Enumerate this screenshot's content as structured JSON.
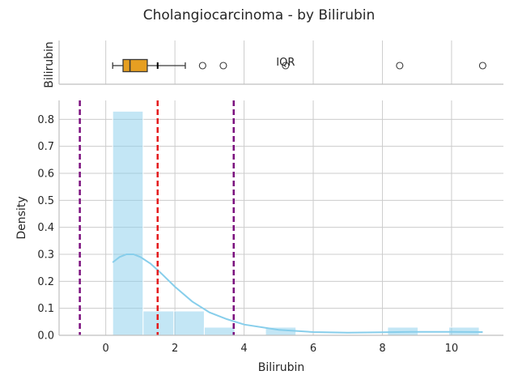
{
  "title": "Cholangiocarcinoma - by Bilirubin",
  "colors": {
    "hist": "#87CEEB",
    "kde": "#87CEEB",
    "box": "#E69F22",
    "mean_line": "#E41A1C",
    "bound_line": "#7B0F7E",
    "grid": "#CCCCCC",
    "axis": "#BFBFBF",
    "text": "#262626"
  },
  "chart_data": [
    {
      "type": "box",
      "ylabel": "Bilirubin",
      "annotation": "IQR",
      "whisker_low": 0.2,
      "q1": 0.5,
      "median": 0.7,
      "q3": 1.2,
      "whisker_high": 2.3,
      "mean": 1.5,
      "outliers": [
        2.8,
        3.4,
        5.2,
        8.5,
        10.9
      ],
      "grid": true
    },
    {
      "type": "histogram",
      "xlabel": "Bilirubin",
      "ylabel": "Density",
      "xlim": [
        -1.35,
        11.5
      ],
      "ylim": [
        0,
        0.87
      ],
      "xticks": [
        0,
        2,
        4,
        6,
        8,
        10
      ],
      "yticks": [
        0.0,
        0.1,
        0.2,
        0.3,
        0.4,
        0.5,
        0.6,
        0.7,
        0.8
      ],
      "grid": true,
      "bins": [
        {
          "x0": 0.2,
          "x1": 1.08,
          "density": 0.83
        },
        {
          "x0": 1.08,
          "x1": 1.97,
          "density": 0.09
        },
        {
          "x0": 1.97,
          "x1": 2.85,
          "density": 0.09
        },
        {
          "x0": 2.85,
          "x1": 3.73,
          "density": 0.03
        },
        {
          "x0": 3.73,
          "x1": 4.62,
          "density": 0.0
        },
        {
          "x0": 4.62,
          "x1": 5.5,
          "density": 0.03
        },
        {
          "x0": 5.5,
          "x1": 6.38,
          "density": 0.0
        },
        {
          "x0": 6.38,
          "x1": 7.27,
          "density": 0.0
        },
        {
          "x0": 7.27,
          "x1": 8.15,
          "density": 0.0
        },
        {
          "x0": 8.15,
          "x1": 9.03,
          "density": 0.03
        },
        {
          "x0": 9.03,
          "x1": 9.92,
          "density": 0.0
        },
        {
          "x0": 9.92,
          "x1": 10.8,
          "density": 0.03
        }
      ],
      "kde": {
        "x": [
          0.2,
          0.4,
          0.6,
          0.8,
          1.0,
          1.3,
          1.6,
          2.0,
          2.5,
          3.0,
          3.5,
          4.0,
          5.0,
          6.0,
          7.0,
          8.0,
          9.0,
          10.0,
          10.9
        ],
        "y": [
          0.27,
          0.29,
          0.3,
          0.3,
          0.29,
          0.265,
          0.23,
          0.18,
          0.125,
          0.085,
          0.06,
          0.04,
          0.02,
          0.012,
          0.01,
          0.011,
          0.013,
          0.013,
          0.012
        ]
      },
      "mean_line": 1.5,
      "bound_lines": [
        -0.75,
        3.7
      ]
    }
  ]
}
